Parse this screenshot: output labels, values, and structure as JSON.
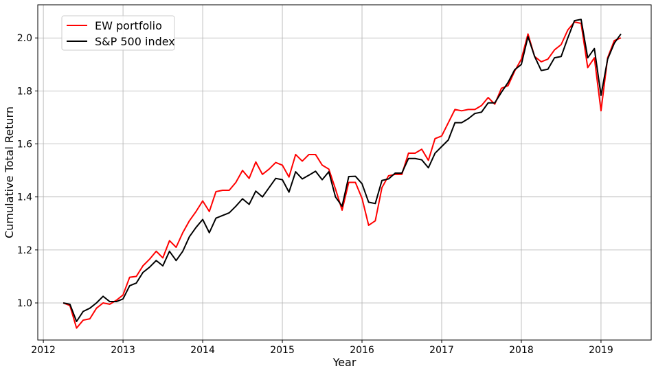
{
  "chart_data": {
    "type": "line",
    "title": "",
    "xlabel": "Year",
    "ylabel": "Cumulative Total Return",
    "xlim": [
      2011.93,
      2019.63
    ],
    "ylim": [
      0.86,
      2.125
    ],
    "x_ticks": [
      2012,
      2013,
      2014,
      2015,
      2016,
      2017,
      2018,
      2019
    ],
    "x_tick_labels": [
      "2012",
      "2013",
      "2014",
      "2015",
      "2016",
      "2017",
      "2018",
      "2019"
    ],
    "y_ticks": [
      1.0,
      1.2,
      1.4,
      1.6,
      1.8,
      2.0
    ],
    "y_tick_labels": [
      "1.0",
      "1.2",
      "1.4",
      "1.6",
      "1.8",
      "2.0"
    ],
    "grid": true,
    "legend_position": "top-left",
    "x_start": 2012.25,
    "x_step_months": 1,
    "series": [
      {
        "name": "EW portfolio",
        "color": "#ff0000",
        "values": [
          1.0,
          0.99,
          0.905,
          0.935,
          0.94,
          0.98,
          1.0,
          0.995,
          1.01,
          1.03,
          1.097,
          1.1,
          1.14,
          1.165,
          1.195,
          1.17,
          1.235,
          1.21,
          1.265,
          1.31,
          1.345,
          1.385,
          1.345,
          1.42,
          1.425,
          1.425,
          1.455,
          1.5,
          1.47,
          1.532,
          1.485,
          1.505,
          1.53,
          1.52,
          1.475,
          1.56,
          1.535,
          1.56,
          1.56,
          1.52,
          1.505,
          1.43,
          1.35,
          1.455,
          1.455,
          1.395,
          1.293,
          1.31,
          1.435,
          1.48,
          1.485,
          1.485,
          1.565,
          1.565,
          1.58,
          1.538,
          1.62,
          1.63,
          1.68,
          1.73,
          1.725,
          1.73,
          1.73,
          1.745,
          1.775,
          1.75,
          1.81,
          1.82,
          1.875,
          1.92,
          2.015,
          1.93,
          1.91,
          1.92,
          1.955,
          1.975,
          2.03,
          2.06,
          2.055,
          1.888,
          1.925,
          1.725,
          1.925,
          1.99,
          2.0
        ]
      },
      {
        "name": "S&P 500 index",
        "color": "#000000",
        "values": [
          1.0,
          0.995,
          0.93,
          0.968,
          0.98,
          1.0,
          1.025,
          1.005,
          1.005,
          1.015,
          1.065,
          1.075,
          1.115,
          1.135,
          1.16,
          1.14,
          1.195,
          1.16,
          1.195,
          1.25,
          1.285,
          1.315,
          1.265,
          1.32,
          1.33,
          1.34,
          1.365,
          1.393,
          1.372,
          1.422,
          1.4,
          1.435,
          1.47,
          1.465,
          1.418,
          1.495,
          1.468,
          1.482,
          1.497,
          1.465,
          1.495,
          1.4,
          1.365,
          1.477,
          1.478,
          1.45,
          1.38,
          1.375,
          1.462,
          1.468,
          1.49,
          1.49,
          1.545,
          1.545,
          1.54,
          1.51,
          1.565,
          1.59,
          1.615,
          1.68,
          1.68,
          1.695,
          1.715,
          1.72,
          1.755,
          1.755,
          1.795,
          1.832,
          1.88,
          1.9,
          2.005,
          1.93,
          1.877,
          1.882,
          1.925,
          1.93,
          2.0,
          2.065,
          2.07,
          1.925,
          1.96,
          1.783,
          1.92,
          1.98,
          2.015
        ]
      }
    ]
  }
}
